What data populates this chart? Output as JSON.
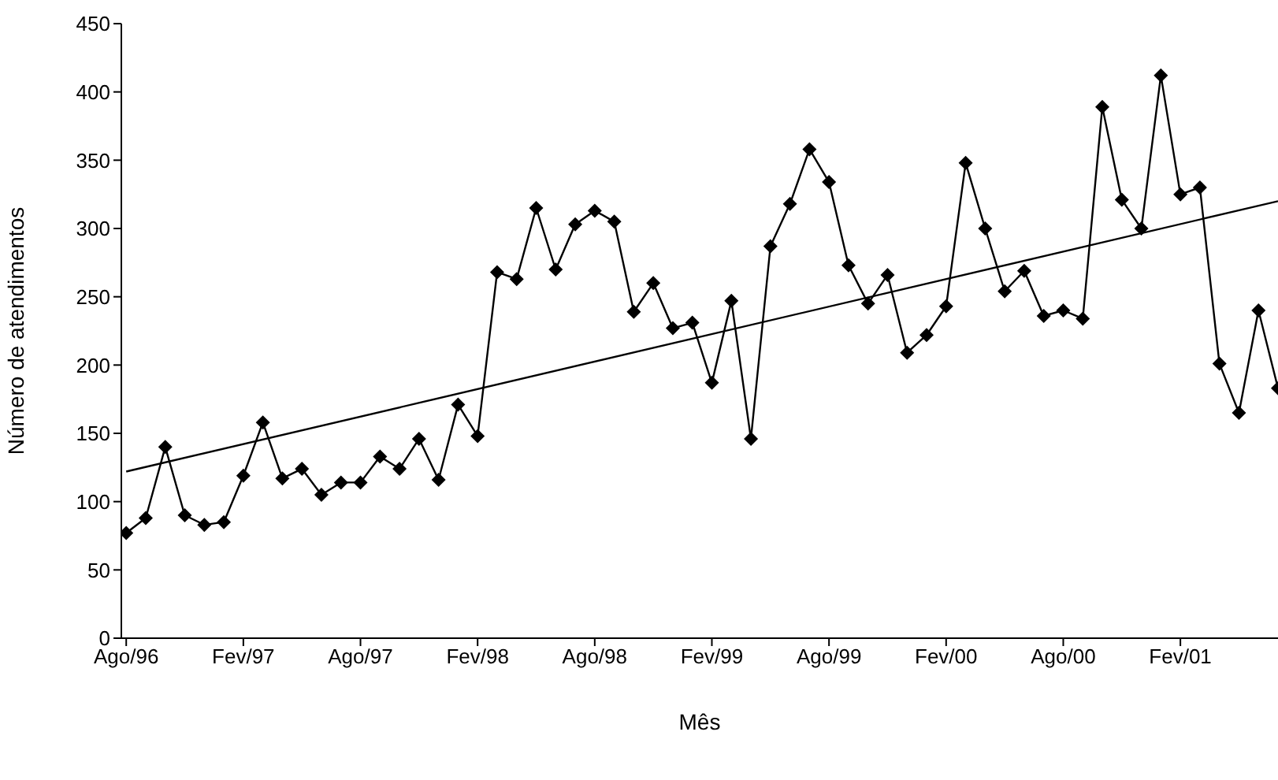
{
  "chart_data": {
    "type": "line",
    "xlabel": "Mês",
    "ylabel": "Número de atendimentos",
    "categories": [
      "Ago/96",
      null,
      null,
      null,
      null,
      null,
      "Fev/97",
      null,
      null,
      null,
      null,
      null,
      "Ago/97",
      null,
      null,
      null,
      null,
      null,
      "Fev/98",
      null,
      null,
      null,
      null,
      null,
      "Ago/98",
      null,
      null,
      null,
      null,
      null,
      "Fev/99",
      null,
      null,
      null,
      null,
      null,
      "Ago/99",
      null,
      null,
      null,
      null,
      null,
      "Fev/00",
      null,
      null,
      null,
      null,
      null,
      "Ago/00",
      null,
      null,
      null,
      null,
      null,
      "Fev/01",
      null,
      null,
      null,
      null,
      null
    ],
    "series": [
      {
        "color": "#000000",
        "marker": "diamond",
        "values": [
          77,
          88,
          140,
          90,
          83,
          85,
          119,
          158,
          117,
          124,
          105,
          114,
          114,
          133,
          124,
          146,
          116,
          171,
          148,
          268,
          263,
          315,
          270,
          303,
          313,
          305,
          239,
          260,
          227,
          231,
          187,
          247,
          146,
          287,
          318,
          358,
          334,
          273,
          245,
          266,
          209,
          222,
          243,
          348,
          300,
          254,
          269,
          236,
          240,
          234,
          389,
          321,
          300,
          412,
          325,
          330,
          201,
          165,
          240,
          183
        ]
      },
      {
        "color": "#000000",
        "marker": "none",
        "values": [
          122,
          null,
          null,
          null,
          null,
          null,
          null,
          null,
          null,
          null,
          null,
          null,
          null,
          null,
          null,
          null,
          null,
          null,
          null,
          null,
          null,
          null,
          null,
          null,
          null,
          null,
          null,
          null,
          null,
          null,
          null,
          null,
          null,
          null,
          null,
          null,
          null,
          null,
          null,
          null,
          null,
          null,
          null,
          null,
          null,
          null,
          null,
          null,
          null,
          null,
          null,
          null,
          null,
          null,
          null,
          null,
          null,
          null,
          null,
          320
        ]
      }
    ],
    "ylim": [
      0,
      450
    ],
    "yticks": [
      0,
      50,
      100,
      150,
      200,
      250,
      300,
      350,
      400,
      450
    ],
    "grid": false,
    "legend": false,
    "line_style": "solid"
  }
}
